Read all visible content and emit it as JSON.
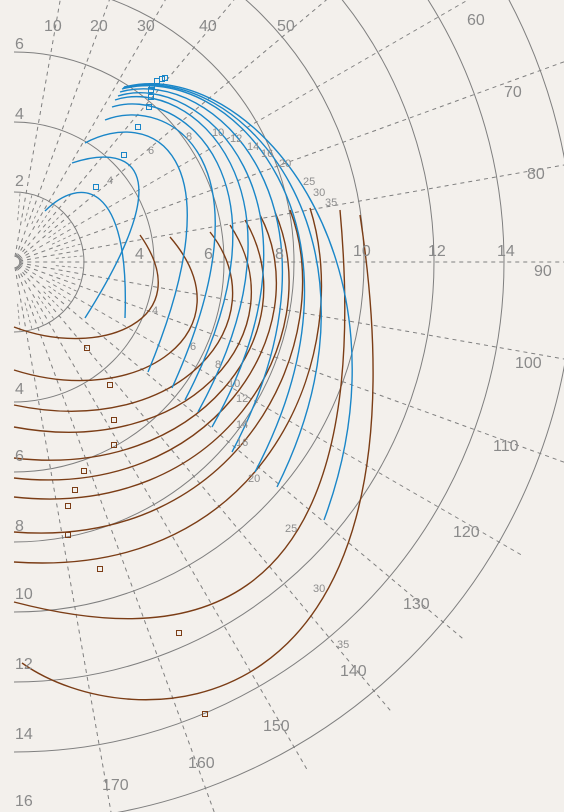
{
  "chart_data": {
    "type": "polar-curves",
    "radial_ticks": [
      "2",
      "4",
      "6",
      "8",
      "10",
      "12",
      "14",
      "16"
    ],
    "angle_ticks": [
      "10",
      "20",
      "30",
      "40",
      "50",
      "60",
      "70",
      "80",
      "90",
      "100",
      "110",
      "120",
      "130",
      "140",
      "150",
      "160",
      "170"
    ],
    "blue_series": {
      "color": "#1a86c8",
      "labels": [
        "4",
        "6",
        "8",
        "10",
        "12",
        "14",
        "16",
        "20",
        "25",
        "30",
        "35"
      ]
    },
    "brown_series": {
      "color": "#7b3d16",
      "labels": [
        "4",
        "6",
        "8",
        "10",
        "12",
        "14",
        "16",
        "20",
        "25",
        "30",
        "35"
      ]
    },
    "colors": {
      "background": "#f3f0ec",
      "grid": "#7f7f7f"
    }
  }
}
